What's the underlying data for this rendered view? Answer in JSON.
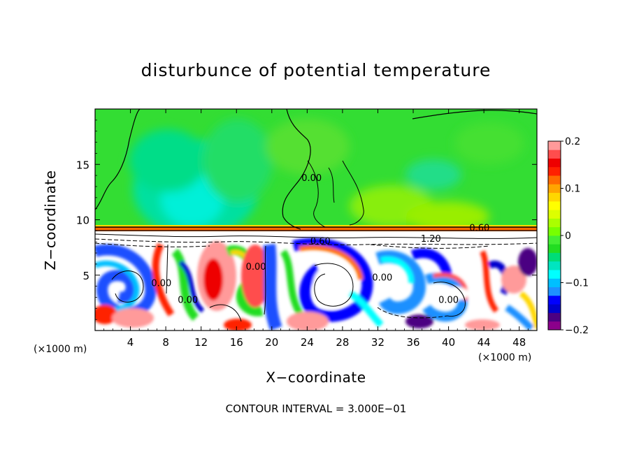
{
  "chart_data": {
    "type": "heatmap",
    "title": "disturbunce of potential temperature",
    "xlabel": "X−coordinate",
    "ylabel": "Z−coordinate",
    "x_unit": "(×1000 m)",
    "footer": "CONTOUR INTERVAL = 3.000E−01",
    "xlim": [
      0,
      50
    ],
    "ylim": [
      0,
      20
    ],
    "x_ticks": [
      4,
      8,
      12,
      16,
      20,
      24,
      28,
      32,
      36,
      40,
      44,
      48
    ],
    "y_ticks": [
      5,
      10,
      15
    ],
    "colorbar": {
      "range": [
        -0.2,
        0.2
      ],
      "tick_values": [
        -0.2,
        -0.1,
        0,
        0.1,
        0.2
      ],
      "tick_labels": [
        "−0.2",
        "−0.1",
        "0",
        "0.1",
        "0.2"
      ],
      "colors": [
        "#8b008b",
        "#4b0082",
        "#0000cd",
        "#0000ff",
        "#1e90ff",
        "#00bfff",
        "#00ffff",
        "#00e5c0",
        "#00dd77",
        "#22dd22",
        "#44ee33",
        "#77ff00",
        "#aaff00",
        "#ddff00",
        "#ffff00",
        "#ffd700",
        "#ffa500",
        "#ff6a00",
        "#ff2000",
        "#ee0000",
        "#ff4d4d",
        "#ff9a9a"
      ]
    },
    "contour_labels": [
      {
        "text": "0.00",
        "x": 24.5,
        "z": 13.5
      },
      {
        "text": "0.60",
        "x": 43.5,
        "z": 9.0
      },
      {
        "text": "0.60",
        "x": 25.5,
        "z": 7.8
      },
      {
        "text": "1.20",
        "x": 38.0,
        "z": 8.0
      },
      {
        "text": "0.00",
        "x": 18.2,
        "z": 5.5
      },
      {
        "text": "0.00",
        "x": 7.5,
        "z": 4.0
      },
      {
        "text": "0.00",
        "x": 10.5,
        "z": 2.5
      },
      {
        "text": "0.00",
        "x": 32.5,
        "z": 4.5
      },
      {
        "text": "0.00",
        "x": 40.0,
        "z": 2.5
      }
    ],
    "regions": [
      {
        "value": 0.02,
        "x": [
          0,
          50
        ],
        "z": [
          9,
          20
        ]
      },
      {
        "value": -0.06,
        "x": [
          9,
          19
        ],
        "z": [
          10,
          17
        ]
      },
      {
        "value": -0.09,
        "x": [
          10.5,
          15.5
        ],
        "z": [
          10,
          13
        ]
      },
      {
        "value": 0.06,
        "x": [
          28,
          36
        ],
        "z": [
          9,
          12
        ]
      },
      {
        "value": -0.04,
        "x": [
          36,
          41
        ],
        "z": [
          14,
          16
        ]
      },
      {
        "value": 0.0,
        "x": [
          0,
          50
        ],
        "z": [
          0,
          9
        ]
      }
    ],
    "grid": false,
    "legend": "right colorbar"
  }
}
